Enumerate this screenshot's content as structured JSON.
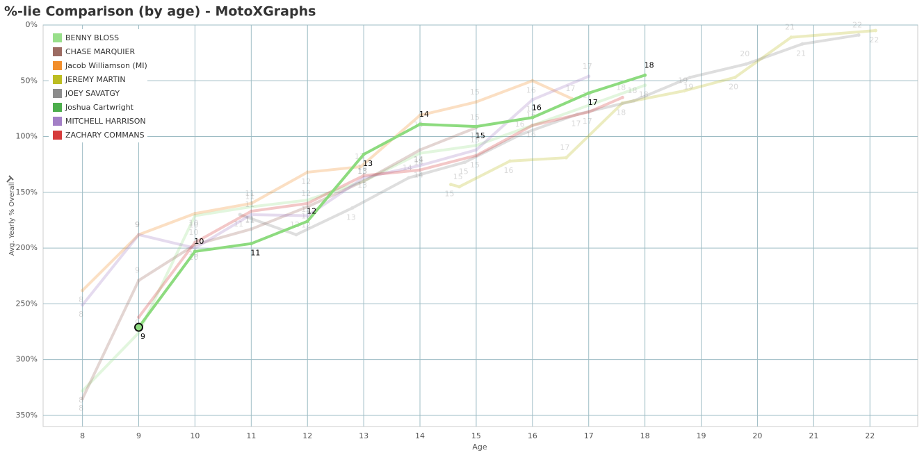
{
  "chart_data": {
    "type": "line",
    "title": "%-lie Comparison (by age) - MotoXGraphs",
    "x_label": "Age",
    "y_label": "Avg. Yearly % Overall",
    "xlim": [
      7.3,
      22.85
    ],
    "xticks": [
      8,
      9,
      10,
      11,
      12,
      13,
      14,
      15,
      16,
      17,
      18,
      19,
      20,
      21,
      22
    ],
    "ylim": [
      0,
      360
    ],
    "y_reversed": true,
    "yticks": [
      {
        "value": 0,
        "label": "0%"
      },
      {
        "value": 50,
        "label": "50%"
      },
      {
        "value": 100,
        "label": "100%"
      },
      {
        "value": 150,
        "label": "150%"
      },
      {
        "value": 200,
        "label": "200%"
      },
      {
        "value": 250,
        "label": "250%"
      },
      {
        "value": 300,
        "label": "300%"
      },
      {
        "value": 350,
        "label": "350%"
      }
    ],
    "grid": true,
    "legend": "upper-left",
    "highlight_series_index": 5,
    "series": [
      {
        "name": "BENNY BLOSS",
        "color": "#98df8a",
        "x": [
          8,
          9,
          10,
          11,
          12,
          13,
          14,
          15,
          16,
          17,
          18
        ],
        "values": [
          328,
          276,
          171,
          163,
          157,
          140,
          115,
          108,
          90,
          72,
          54
        ],
        "point_labels": [
          8,
          9,
          10,
          11,
          12,
          13,
          14,
          15,
          16,
          17,
          18
        ]
      },
      {
        "name": "CHASE MARQUIER",
        "color": "#9c6b62",
        "x": [
          8,
          9,
          10,
          11,
          12,
          13,
          14,
          15
        ],
        "values": [
          335,
          229,
          197,
          183,
          163,
          140,
          112,
          92
        ],
        "point_labels": [
          8,
          9,
          10,
          11,
          12,
          13,
          14,
          15
        ]
      },
      {
        "name": "Jacob Williamson (MI)",
        "color": "#f28e2b",
        "x": [
          8,
          9,
          10,
          11,
          12,
          12.95,
          14,
          15,
          16,
          16.7
        ],
        "values": [
          238,
          188,
          169,
          160,
          132,
          127,
          81,
          69,
          50,
          66
        ],
        "point_labels": [
          8,
          9,
          10,
          11,
          12,
          13,
          14,
          15,
          16,
          17
        ]
      },
      {
        "name": "JEREMY MARTIN",
        "color": "#bcbd22",
        "x": [
          14.55,
          14.7,
          15.6,
          16.6,
          17.6,
          18.7,
          19.6,
          20.6,
          22.1
        ],
        "values": [
          143,
          145,
          122,
          119,
          70,
          59,
          47,
          11,
          5
        ],
        "point_labels": [
          15,
          15,
          16,
          17,
          18,
          19,
          20,
          21,
          22
        ]
      },
      {
        "name": "JOEY SAVATGY",
        "color": "#8c8c8c",
        "x": [
          10.8,
          11.8,
          12.8,
          13.8,
          14.8,
          15.8,
          16.8,
          17.8,
          18.8,
          19.8,
          20.8,
          21.8
        ],
        "values": [
          170,
          188,
          164,
          137,
          123,
          98,
          80,
          68,
          47,
          35,
          17,
          9
        ],
        "point_labels": [
          11,
          12,
          13,
          14,
          15,
          16,
          17,
          18,
          19,
          20,
          21,
          22
        ]
      },
      {
        "name": "Joshua Cartwright",
        "color": "#4cae4c",
        "x": [
          9,
          10,
          11,
          12,
          13,
          14,
          15,
          16,
          17,
          18
        ],
        "values": [
          271,
          203,
          196,
          176,
          116,
          89,
          91,
          83,
          61,
          45
        ],
        "point_labels": [
          9,
          10,
          11,
          12,
          13,
          14,
          15,
          16,
          17,
          18
        ]
      },
      {
        "name": "MITCHELL HARRISON",
        "color": "#a37fc6",
        "x": [
          8,
          9,
          10,
          11,
          12,
          13,
          14,
          15,
          16,
          17
        ],
        "values": [
          251,
          188,
          200,
          170,
          171,
          137,
          126,
          112,
          67,
          46
        ],
        "point_labels": [
          8,
          9,
          10,
          11,
          12,
          13,
          14,
          15,
          16,
          17
        ]
      },
      {
        "name": "ZACHARY COMMANS",
        "color": "#d63b3b",
        "x": [
          9,
          10,
          11,
          12,
          13,
          14,
          15,
          16,
          17,
          17.6
        ],
        "values": [
          262,
          195,
          167,
          160,
          135,
          130,
          117,
          90,
          78,
          65
        ],
        "point_labels": [
          9,
          10,
          11,
          12,
          13,
          14,
          15,
          16,
          17,
          18
        ]
      }
    ]
  }
}
